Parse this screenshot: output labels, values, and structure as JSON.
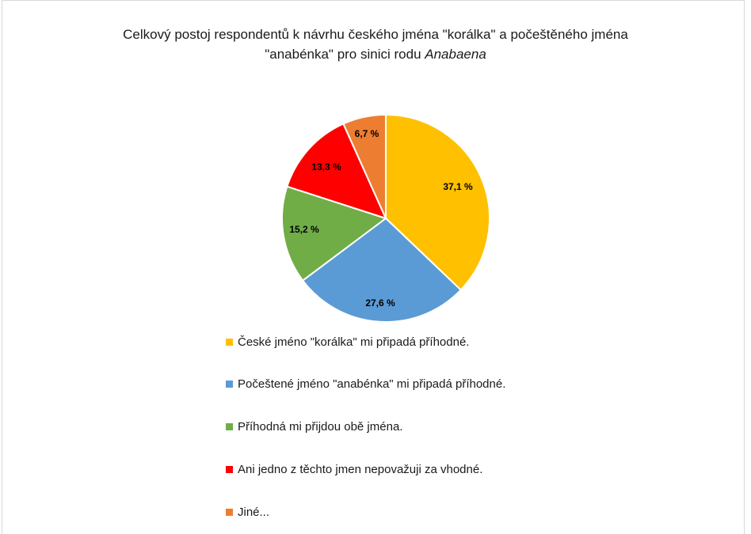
{
  "title": {
    "line1": "Celkový postoj respondentů k návrhu českého jména \"korálka\" a počeštěného jména",
    "line2_prefix": "\"anabénka\" pro sinici rodu ",
    "line2_italic": "Anabaena"
  },
  "chart_data": {
    "type": "pie",
    "title": "Celkový postoj respondentů k návrhu českého jména \"korálka\" a počeštěného jména \"anabénka\" pro sinici rodu Anabaena",
    "legend_position": "bottom",
    "slices": [
      {
        "label": "České jméno \"korálka\" mi připadá příhodné.",
        "value": 37.1,
        "value_label": "37,1 %",
        "color": "#FFC000"
      },
      {
        "label": "Počeštené jméno \"anabénka\" mi připadá příhodné.",
        "value": 27.6,
        "value_label": "27,6 %",
        "color": "#5B9BD5"
      },
      {
        "label": "Příhodná mi přijdou obě jména.",
        "value": 15.2,
        "value_label": "15,2 %",
        "color": "#70AD47"
      },
      {
        "label": "Ani jedno z těchto jmen nepovažuji za vhodné.",
        "value": 13.3,
        "value_label": "13,3 %",
        "color": "#FF0000"
      },
      {
        "label": "Jiné...",
        "value": 6.7,
        "value_label": "6,7 %",
        "color": "#ED7D31"
      }
    ]
  }
}
